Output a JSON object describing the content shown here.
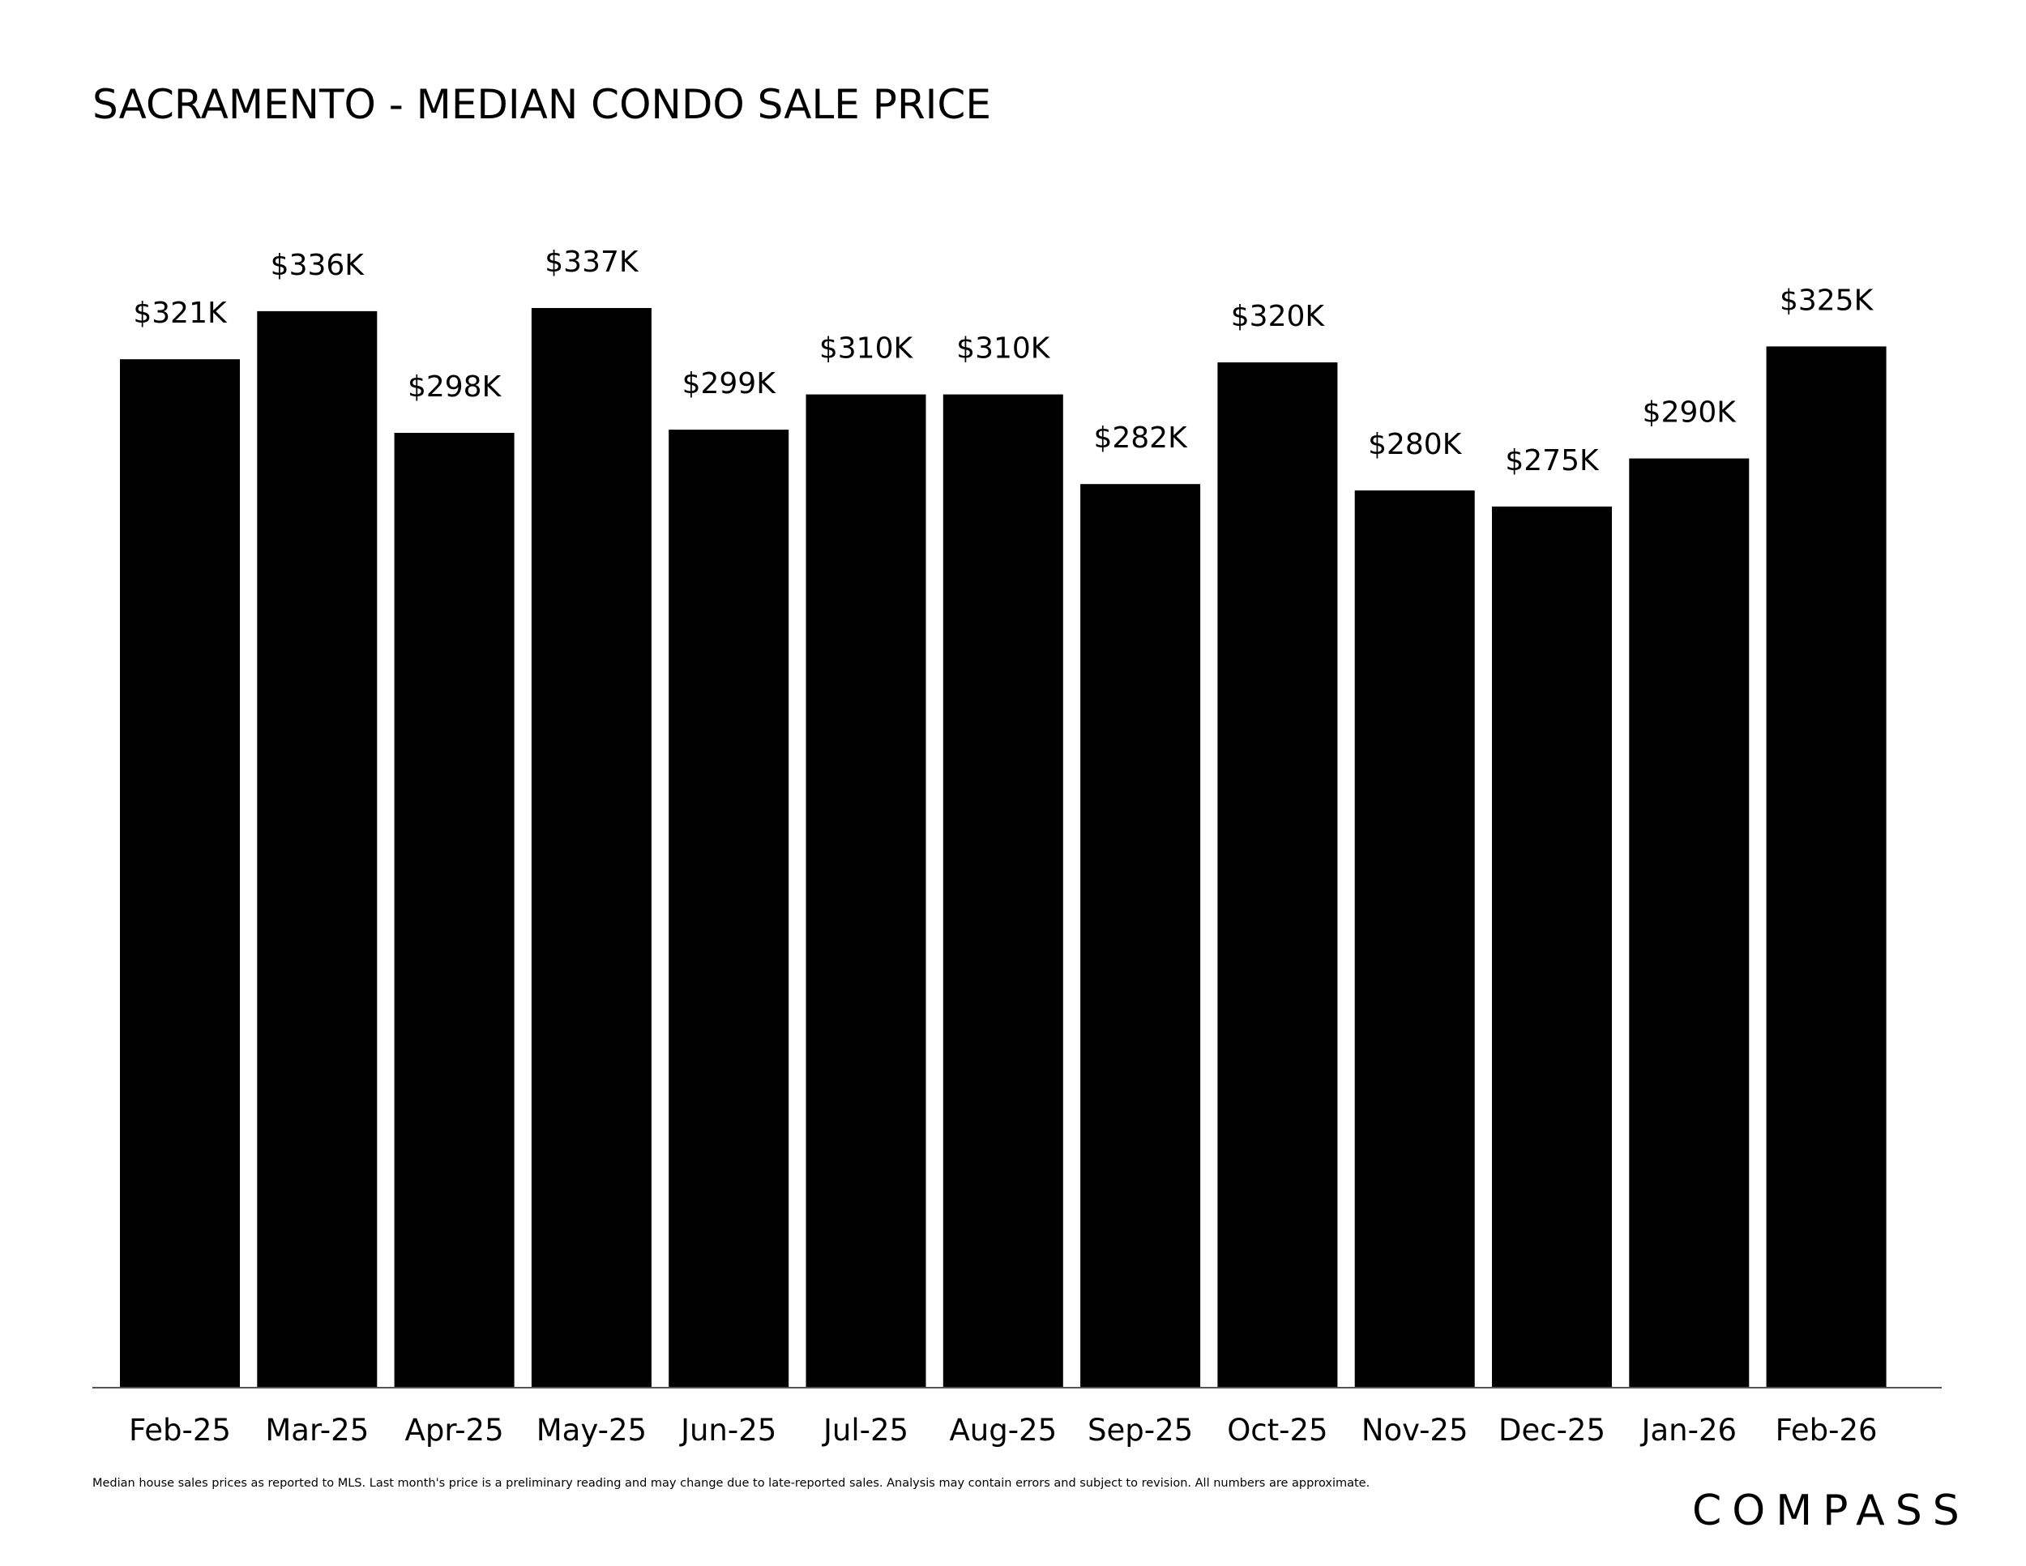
{
  "chart_data": {
    "type": "bar",
    "title": "SACRAMENTO - MEDIAN CONDO SALE PRICE",
    "categories": [
      "Feb-25",
      "Mar-25",
      "Apr-25",
      "May-25",
      "Jun-25",
      "Jul-25",
      "Aug-25",
      "Sep-25",
      "Oct-25",
      "Nov-25",
      "Dec-25",
      "Jan-26",
      "Feb-26"
    ],
    "values": [
      321,
      336,
      298,
      337,
      299,
      310,
      310,
      282,
      320,
      280,
      275,
      290,
      325
    ],
    "data_labels": [
      "$321K",
      "$336K",
      "$298K",
      "$337K",
      "$299K",
      "$310K",
      "$310K",
      "$282K",
      "$320K",
      "$280K",
      "$275K",
      "$290K",
      "$325K"
    ],
    "unit": "$K",
    "ylim": [
      0,
      337
    ],
    "bar_color": "#000000",
    "grid": false,
    "legend": "none",
    "xlabel": "",
    "ylabel": ""
  },
  "footnote": "Median house sales prices as reported to MLS. Last month's price is a preliminary reading and may change due to late-reported sales. Analysis may contain errors and subject to revision. All numbers are approximate.",
  "brand": "COMPASS"
}
